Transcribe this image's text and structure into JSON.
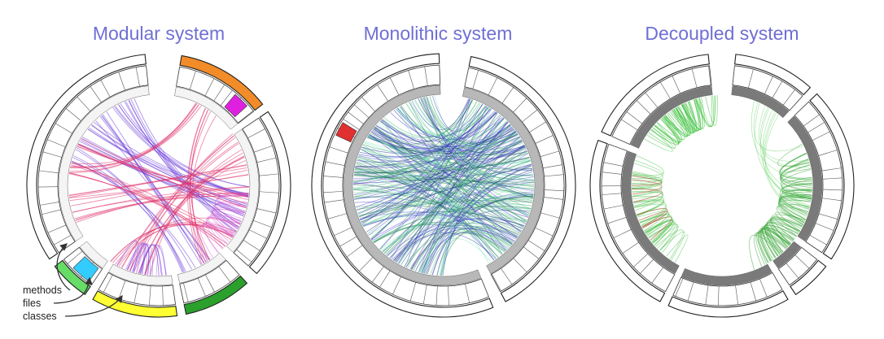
{
  "panels": [
    {
      "title": "Modular system",
      "mode": "modular"
    },
    {
      "title": "Monolithic system",
      "mode": "monolithic"
    },
    {
      "title": "Decoupled system",
      "mode": "decoupled"
    }
  ],
  "legend": {
    "methods": "methods",
    "files": "files",
    "classes": "classes"
  },
  "colors": {
    "title": "#6f6fd6",
    "orange": "#f28c28",
    "green": "#2ca02c",
    "yellow": "#ffff33",
    "cyan": "#33ccff",
    "lightgreen": "#66dd66",
    "magenta": "#e020e0",
    "red": "#e03030",
    "gray": "#9a9a9a",
    "darkgray": "#7a7a7a"
  }
}
